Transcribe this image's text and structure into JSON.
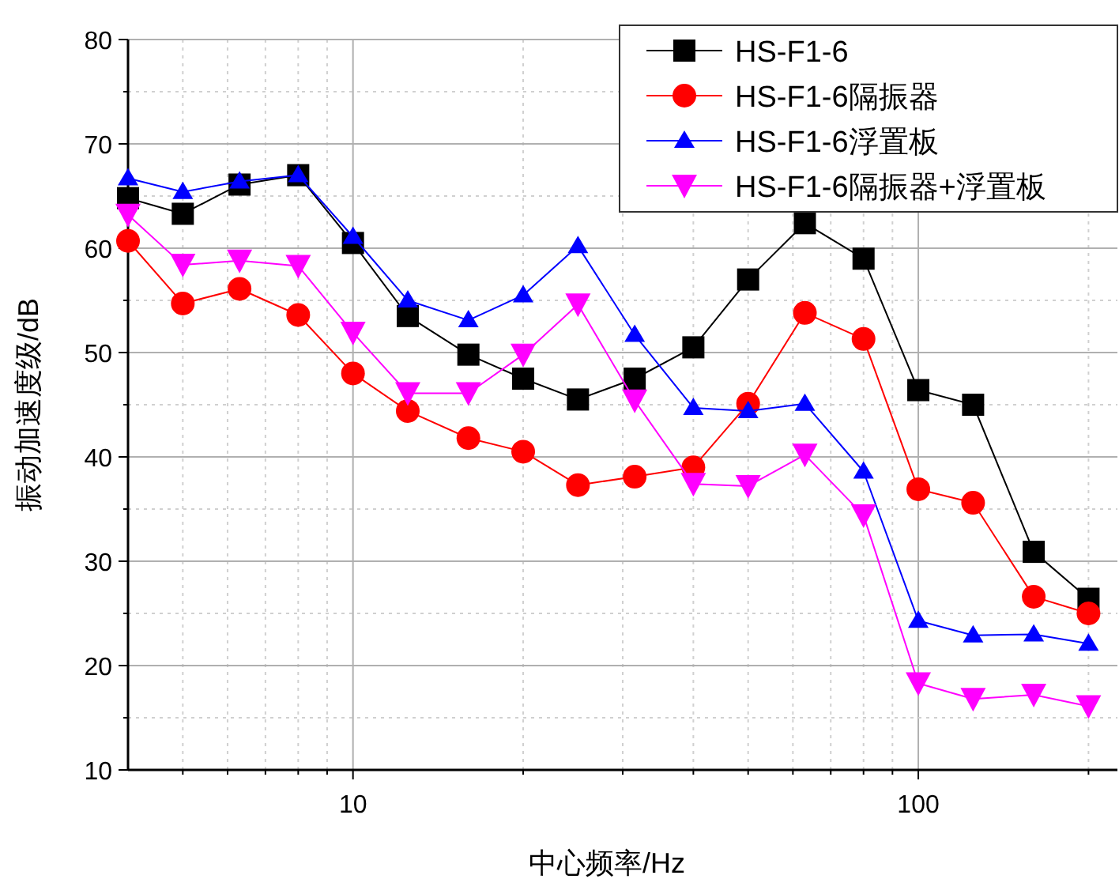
{
  "chart_data": {
    "type": "line",
    "xlabel": "中心频率/Hz",
    "ylabel": "振动加速度级/dB",
    "log": "x",
    "x": [
      4,
      5,
      6.3,
      8,
      10,
      12.5,
      16,
      20,
      25,
      31.5,
      40,
      50,
      63,
      80,
      100,
      125,
      160,
      200
    ],
    "xlim": [
      4,
      225
    ],
    "xticks": [
      {
        "value": 5,
        "label": null
      },
      {
        "value": 6,
        "label": null
      },
      {
        "value": 7,
        "label": null
      },
      {
        "value": 8,
        "label": null
      },
      {
        "value": 9,
        "label": null
      },
      10,
      {
        "value": 20,
        "label": null
      },
      {
        "value": 30,
        "label": null
      },
      {
        "value": 40,
        "label": null
      },
      {
        "value": 50,
        "label": null
      },
      {
        "value": 60,
        "label": null
      },
      {
        "value": 70,
        "label": null
      },
      {
        "value": 80,
        "label": null
      },
      {
        "value": 90,
        "label": null
      },
      100,
      {
        "value": 200,
        "label": null
      }
    ],
    "ylim": [
      10,
      80
    ],
    "yticks": [
      10,
      20,
      30,
      40,
      50,
      60,
      70,
      80
    ],
    "grid": true,
    "legend": "top right",
    "line_style": "solid",
    "series": [
      {
        "name": "HS-F1-6",
        "color": "#000000",
        "marker": "square",
        "values": [
          64.8,
          63.3,
          66.1,
          67,
          60.5,
          53.5,
          49.8,
          47.5,
          45.5,
          47.5,
          50.5,
          57,
          62.4,
          59,
          46.4,
          45,
          30.9,
          26.4
        ]
      },
      {
        "name": "HS-F1-6隔振器",
        "color": "#ff0000",
        "marker": "circle",
        "values": [
          60.7,
          54.7,
          56.1,
          53.6,
          48,
          44.4,
          41.8,
          40.5,
          37.3,
          38.1,
          39,
          45.1,
          53.8,
          51.3,
          36.9,
          35.6,
          26.6,
          25
        ]
      },
      {
        "name": "HS-F1-6浮置板",
        "color": "#0000ff",
        "marker": "triangle",
        "values": [
          66.7,
          65.4,
          66.4,
          67,
          61.1,
          55,
          53.1,
          55.5,
          60.2,
          51.7,
          44.7,
          44.4,
          45.1,
          38.6,
          24.3,
          22.9,
          23,
          22.1
        ]
      },
      {
        "name": "HS-F1-6隔振器+浮置板",
        "color": "#ff00ff",
        "marker": "triangle-down",
        "values": [
          63.2,
          58.4,
          58.8,
          58.3,
          51.9,
          46.1,
          46.1,
          49.8,
          54.6,
          45.4,
          37.4,
          37.2,
          40.2,
          34.4,
          18.3,
          16.8,
          17.2,
          16.1
        ]
      }
    ]
  }
}
